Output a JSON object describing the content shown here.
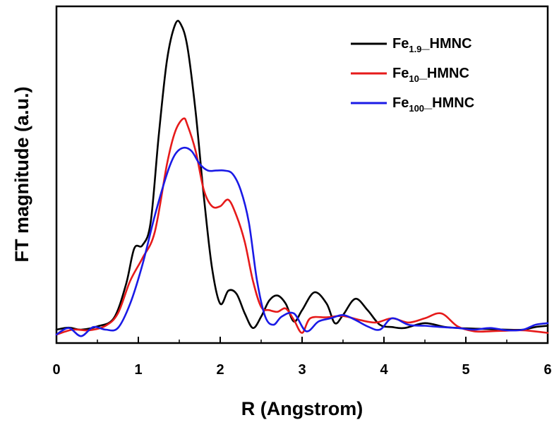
{
  "chart_data": {
    "type": "line",
    "title": "",
    "xlabel": "R (Angstrom)",
    "ylabel": "FT magnitude (a.u.)",
    "xlim": [
      0,
      6
    ],
    "ylim": [
      0,
      1.0
    ],
    "xticks": [
      0,
      1,
      2,
      3,
      4,
      5,
      6
    ],
    "xtick_labels": [
      "0",
      "1",
      "2",
      "3",
      "4",
      "5",
      "6"
    ],
    "yticks_shown": false,
    "grid": false,
    "legend_position": "top-right",
    "series": [
      {
        "name": "Fe1.9_HMNC",
        "legend": {
          "base": "Fe",
          "sub": "1.9",
          "suffix": "_HMNC"
        },
        "color": "#000000",
        "x": [
          0,
          0.15,
          0.3,
          0.5,
          0.7,
          0.85,
          0.95,
          1.05,
          1.15,
          1.25,
          1.35,
          1.45,
          1.52,
          1.6,
          1.7,
          1.8,
          1.9,
          2.0,
          2.1,
          2.2,
          2.3,
          2.4,
          2.5,
          2.6,
          2.7,
          2.8,
          2.9,
          3.0,
          3.15,
          3.3,
          3.4,
          3.5,
          3.65,
          3.8,
          3.95,
          4.1,
          4.25,
          4.5,
          4.75,
          5.0,
          5.25,
          5.5,
          5.7,
          5.85,
          6.0
        ],
        "y": [
          0.05,
          0.056,
          0.05,
          0.06,
          0.085,
          0.19,
          0.3,
          0.31,
          0.38,
          0.65,
          0.88,
          0.99,
          0.99,
          0.92,
          0.72,
          0.46,
          0.24,
          0.13,
          0.17,
          0.16,
          0.1,
          0.055,
          0.09,
          0.14,
          0.155,
          0.13,
          0.075,
          0.11,
          0.165,
          0.13,
          0.07,
          0.095,
          0.145,
          0.11,
          0.065,
          0.058,
          0.055,
          0.07,
          0.058,
          0.054,
          0.052,
          0.05,
          0.05,
          0.058,
          0.062
        ]
      },
      {
        "name": "Fe10_HMNC",
        "legend": {
          "base": "Fe",
          "sub": "10",
          "suffix": "_HMNC"
        },
        "color": "#e61a1a",
        "x": [
          0,
          0.2,
          0.4,
          0.6,
          0.75,
          0.9,
          1.05,
          1.2,
          1.35,
          1.45,
          1.55,
          1.6,
          1.7,
          1.8,
          1.9,
          2.0,
          2.1,
          2.2,
          2.3,
          2.4,
          2.5,
          2.6,
          2.7,
          2.8,
          2.9,
          3.0,
          3.1,
          3.3,
          3.5,
          3.7,
          3.9,
          4.1,
          4.3,
          4.5,
          4.7,
          4.9,
          5.1,
          5.3,
          5.5,
          5.7,
          5.9,
          6.0
        ],
        "y": [
          0.035,
          0.05,
          0.048,
          0.062,
          0.1,
          0.2,
          0.27,
          0.35,
          0.56,
          0.66,
          0.7,
          0.68,
          0.6,
          0.48,
          0.43,
          0.43,
          0.45,
          0.4,
          0.32,
          0.2,
          0.12,
          0.11,
          0.105,
          0.115,
          0.08,
          0.04,
          0.085,
          0.088,
          0.092,
          0.08,
          0.072,
          0.085,
          0.072,
          0.085,
          0.1,
          0.06,
          0.045,
          0.045,
          0.047,
          0.048,
          0.043,
          0.04
        ]
      },
      {
        "name": "Fe100_HMNC",
        "legend": {
          "base": "Fe",
          "sub": "100",
          "suffix": "_HMNC"
        },
        "color": "#1a1ae6",
        "x": [
          0,
          0.15,
          0.3,
          0.45,
          0.6,
          0.75,
          0.9,
          1.05,
          1.2,
          1.35,
          1.45,
          1.55,
          1.65,
          1.75,
          1.85,
          1.95,
          2.05,
          2.15,
          2.25,
          2.35,
          2.45,
          2.55,
          2.65,
          2.75,
          2.9,
          3.05,
          3.2,
          3.35,
          3.5,
          3.65,
          3.8,
          3.95,
          4.1,
          4.3,
          4.5,
          4.7,
          4.9,
          5.1,
          5.3,
          5.5,
          5.7,
          5.85,
          6.0
        ],
        "y": [
          0.035,
          0.055,
          0.03,
          0.058,
          0.05,
          0.055,
          0.13,
          0.25,
          0.4,
          0.53,
          0.59,
          0.61,
          0.6,
          0.56,
          0.54,
          0.54,
          0.54,
          0.53,
          0.48,
          0.38,
          0.2,
          0.09,
          0.065,
          0.09,
          0.1,
          0.045,
          0.075,
          0.085,
          0.095,
          0.08,
          0.06,
          0.05,
          0.085,
          0.065,
          0.062,
          0.058,
          0.055,
          0.05,
          0.055,
          0.048,
          0.05,
          0.065,
          0.07
        ]
      }
    ]
  }
}
